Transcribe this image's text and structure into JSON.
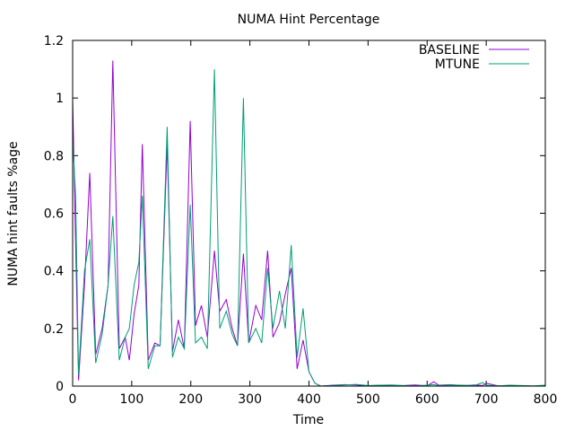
{
  "chart_data": {
    "type": "line",
    "title": "NUMA Hint Percentage",
    "xlabel": "Time",
    "ylabel": "NUMA hint faults %age",
    "xlim": [
      0,
      800
    ],
    "ylim": [
      0,
      1.2
    ],
    "xticks": [
      0,
      100,
      200,
      300,
      400,
      500,
      600,
      700,
      800
    ],
    "yticks": [
      0,
      0.2,
      0.4,
      0.6,
      0.8,
      1,
      1.2
    ],
    "grid": false,
    "legend_position": "top-right",
    "x": [
      0,
      5,
      10,
      20,
      29,
      39,
      50,
      60,
      68,
      79,
      89,
      96,
      104,
      112,
      118,
      128,
      139,
      148,
      160,
      169,
      179,
      189,
      199,
      208,
      218,
      228,
      240,
      249,
      260,
      270,
      279,
      289,
      298,
      310,
      320,
      330,
      339,
      350,
      360,
      370,
      380,
      390,
      400,
      410,
      420,
      440,
      460,
      480,
      500,
      520,
      540,
      560,
      580,
      600,
      611,
      620,
      640,
      660,
      680,
      694,
      700,
      720,
      740,
      760,
      780,
      800
    ],
    "series": [
      {
        "name": "BASELINE",
        "color": "#9400d3",
        "values": [
          1.0,
          0.5,
          0.02,
          0.35,
          0.74,
          0.11,
          0.2,
          0.35,
          1.13,
          0.13,
          0.17,
          0.09,
          0.25,
          0.35,
          0.84,
          0.09,
          0.15,
          0.14,
          0.84,
          0.12,
          0.23,
          0.13,
          0.92,
          0.21,
          0.28,
          0.17,
          0.47,
          0.26,
          0.3,
          0.2,
          0.14,
          0.46,
          0.15,
          0.28,
          0.23,
          0.47,
          0.17,
          0.22,
          0.32,
          0.41,
          0.06,
          0.16,
          0.05,
          0.01,
          0,
          0.003,
          0.005,
          0.004,
          0.001,
          0.003,
          0.001,
          0.002,
          0.004,
          0.001,
          0.015,
          0.003,
          0.005,
          0.001,
          0.004,
          0.002,
          0.01,
          0.001,
          0.002,
          0.001,
          0,
          0
        ]
      },
      {
        "name": "MTUNE",
        "color": "#009e73",
        "values": [
          0.86,
          0.66,
          0.04,
          0.4,
          0.51,
          0.08,
          0.18,
          0.35,
          0.59,
          0.09,
          0.17,
          0.2,
          0.35,
          0.43,
          0.66,
          0.06,
          0.14,
          0.14,
          0.9,
          0.1,
          0.17,
          0.13,
          0.63,
          0.15,
          0.17,
          0.13,
          1.1,
          0.2,
          0.26,
          0.18,
          0.14,
          1.0,
          0.15,
          0.2,
          0.15,
          0.41,
          0.2,
          0.33,
          0.2,
          0.49,
          0.1,
          0.27,
          0.05,
          0.01,
          0,
          0.002,
          0.004,
          0.006,
          0.002,
          0.003,
          0.004,
          0.002,
          0.001,
          0.003,
          0.005,
          0.002,
          0.004,
          0.003,
          0.002,
          0.012,
          0.003,
          0.001,
          0.003,
          0.002,
          0.001,
          0.003
        ]
      }
    ]
  }
}
